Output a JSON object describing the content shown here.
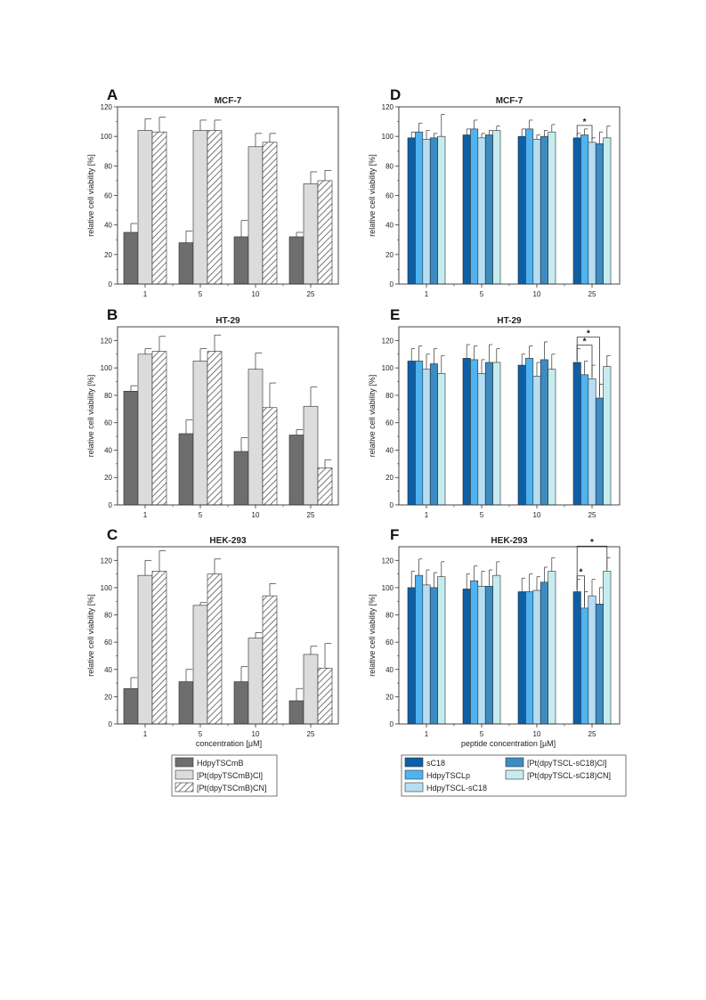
{
  "figure": {
    "left_xlabel": "concentration [µM]",
    "right_xlabel": "peptide concentration [µM]",
    "legend_left": [
      {
        "label": "HdpyTSCmB",
        "color": "#6e6e6e",
        "pattern": "solid"
      },
      {
        "label": "[Pt(dpyTSCmB)Cl]",
        "color": "#dcdcdc",
        "pattern": "solid"
      },
      {
        "label": "[Pt(dpyTSCmB)CN]",
        "color": "#ffffff",
        "pattern": "hatch"
      }
    ],
    "legend_right": [
      {
        "label": "sC18",
        "color": "#0d5fa6"
      },
      {
        "label": "HdpyTSCLp",
        "color": "#4fb3f0"
      },
      {
        "label": "HdpyTSCL-sC18",
        "color": "#b5def4"
      },
      {
        "label": "[Pt(dpyTSCL-sC18)Cl]",
        "color": "#3c8cc2"
      },
      {
        "label": "[Pt(dpyTSCL-sC18)CN]",
        "color": "#c6ecf0"
      }
    ]
  },
  "chart_data": [
    {
      "panel": "A",
      "type": "bar",
      "title": "MCF-7",
      "ylabel": "relative cell viability [%]",
      "ylim": [
        0,
        120
      ],
      "yticks": [
        0,
        20,
        40,
        60,
        80,
        100,
        120
      ],
      "categories": [
        "1",
        "5",
        "10",
        "25"
      ],
      "series": [
        {
          "name": "HdpyTSCmB",
          "values": [
            35,
            28,
            32,
            32
          ],
          "errors": [
            6,
            8,
            11,
            3
          ]
        },
        {
          "name": "[Pt(dpyTSCmB)Cl]",
          "values": [
            104,
            104,
            93,
            68
          ],
          "errors": [
            8,
            7,
            9,
            8
          ]
        },
        {
          "name": "[Pt(dpyTSCmB)CN]",
          "values": [
            103,
            104,
            96,
            70
          ],
          "errors": [
            10,
            7,
            6,
            7
          ]
        }
      ]
    },
    {
      "panel": "B",
      "type": "bar",
      "title": "HT-29",
      "ylabel": "relative cell viability [%]",
      "ylim": [
        0,
        130
      ],
      "yticks": [
        0,
        20,
        40,
        60,
        80,
        100,
        120
      ],
      "categories": [
        "1",
        "5",
        "10",
        "25"
      ],
      "series": [
        {
          "name": "HdpyTSCmB",
          "values": [
            83,
            52,
            39,
            51
          ],
          "errors": [
            4,
            10,
            10,
            4
          ]
        },
        {
          "name": "[Pt(dpyTSCmB)Cl]",
          "values": [
            110,
            105,
            99,
            72
          ],
          "errors": [
            4,
            9,
            12,
            14
          ]
        },
        {
          "name": "[Pt(dpyTSCmB)CN]",
          "values": [
            112,
            112,
            71,
            27
          ],
          "errors": [
            11,
            12,
            18,
            6
          ]
        }
      ]
    },
    {
      "panel": "C",
      "type": "bar",
      "title": "HEK-293",
      "ylabel": "relative cell viability [%]",
      "ylim": [
        0,
        130
      ],
      "yticks": [
        0,
        20,
        40,
        60,
        80,
        100,
        120
      ],
      "xlabel": "concentration [µM]",
      "categories": [
        "1",
        "5",
        "10",
        "25"
      ],
      "series": [
        {
          "name": "HdpyTSCmB",
          "values": [
            26,
            31,
            31,
            17
          ],
          "errors": [
            8,
            9,
            11,
            9
          ]
        },
        {
          "name": "[Pt(dpyTSCmB)Cl]",
          "values": [
            109,
            87,
            63,
            51
          ],
          "errors": [
            11,
            2,
            4,
            6
          ]
        },
        {
          "name": "[Pt(dpyTSCmB)CN]",
          "values": [
            112,
            110,
            94,
            41
          ],
          "errors": [
            15,
            11,
            9,
            18
          ]
        }
      ]
    },
    {
      "panel": "D",
      "type": "bar",
      "title": "MCF-7",
      "ylabel": "relative cell viability [%]",
      "ylim": [
        0,
        120
      ],
      "yticks": [
        0,
        20,
        40,
        60,
        80,
        100,
        120
      ],
      "categories": [
        "1",
        "5",
        "10",
        "25"
      ],
      "significance": [
        {
          "category": "25",
          "from": 0,
          "to": 2,
          "label": "*"
        }
      ],
      "series": [
        {
          "name": "sC18",
          "values": [
            99,
            101,
            100,
            99
          ],
          "errors": [
            4,
            4,
            5,
            3
          ]
        },
        {
          "name": "HdpyTSCLp",
          "values": [
            103,
            105,
            105,
            101
          ],
          "errors": [
            6,
            6,
            6,
            4
          ]
        },
        {
          "name": "HdpyTSCL-sC18",
          "values": [
            98,
            99,
            98,
            96
          ],
          "errors": [
            6,
            3,
            3,
            3
          ]
        },
        {
          "name": "[Pt(dpyTSCL-sC18)Cl]",
          "values": [
            99,
            101,
            100,
            95
          ],
          "errors": [
            3,
            3,
            4,
            8
          ]
        },
        {
          "name": "[Pt(dpyTSCL-sC18)CN]",
          "values": [
            100,
            104,
            103,
            99
          ],
          "errors": [
            15,
            3,
            5,
            8
          ]
        }
      ]
    },
    {
      "panel": "E",
      "type": "bar",
      "title": "HT-29",
      "ylabel": "relative cell viability [%]",
      "ylim": [
        0,
        130
      ],
      "yticks": [
        0,
        20,
        40,
        60,
        80,
        100,
        120
      ],
      "categories": [
        "1",
        "5",
        "10",
        "25"
      ],
      "significance": [
        {
          "category": "25",
          "from": 0,
          "to": 2,
          "label": "*"
        },
        {
          "category": "25",
          "from": 0,
          "to": 3,
          "label": "*"
        }
      ],
      "series": [
        {
          "name": "sC18",
          "values": [
            105,
            107,
            102,
            104
          ],
          "errors": [
            9,
            10,
            8,
            10
          ]
        },
        {
          "name": "HdpyTSCLp",
          "values": [
            105,
            106,
            107,
            95
          ],
          "errors": [
            11,
            10,
            9,
            10
          ]
        },
        {
          "name": "HdpyTSCL-sC18",
          "values": [
            99,
            96,
            94,
            92
          ],
          "errors": [
            11,
            10,
            10,
            10
          ]
        },
        {
          "name": "[Pt(dpyTSCL-sC18)Cl]",
          "values": [
            103,
            104,
            106,
            78
          ],
          "errors": [
            11,
            13,
            13,
            10
          ]
        },
        {
          "name": "[Pt(dpyTSCL-sC18)CN]",
          "values": [
            96,
            104,
            99,
            101
          ],
          "errors": [
            13,
            10,
            11,
            8
          ]
        }
      ]
    },
    {
      "panel": "F",
      "type": "bar",
      "title": "HEK-293",
      "ylabel": "relative cell viability [%]",
      "ylim": [
        0,
        130
      ],
      "yticks": [
        0,
        20,
        40,
        60,
        80,
        100,
        120
      ],
      "xlabel": "peptide concentration [µM]",
      "categories": [
        "1",
        "5",
        "10",
        "25"
      ],
      "significance": [
        {
          "category": "25",
          "from": 0,
          "to": 1,
          "label": "*"
        },
        {
          "category": "25",
          "from": 0,
          "to": 4,
          "label": "*"
        }
      ],
      "series": [
        {
          "name": "sC18",
          "values": [
            100,
            99,
            97,
            97
          ],
          "errors": [
            12,
            11,
            10,
            9
          ]
        },
        {
          "name": "HdpyTSCLp",
          "values": [
            109,
            105,
            97,
            85
          ],
          "errors": [
            12,
            11,
            13,
            12
          ]
        },
        {
          "name": "HdpyTSCL-sC18",
          "values": [
            102,
            101,
            98,
            94
          ],
          "errors": [
            11,
            11,
            10,
            12
          ]
        },
        {
          "name": "[Pt(dpyTSCL-sC18)Cl]",
          "values": [
            100,
            101,
            104,
            88
          ],
          "errors": [
            11,
            12,
            11,
            12
          ]
        },
        {
          "name": "[Pt(dpyTSCL-sC18)CN]",
          "values": [
            108,
            109,
            112,
            112
          ],
          "errors": [
            11,
            10,
            10,
            10
          ]
        }
      ]
    }
  ]
}
